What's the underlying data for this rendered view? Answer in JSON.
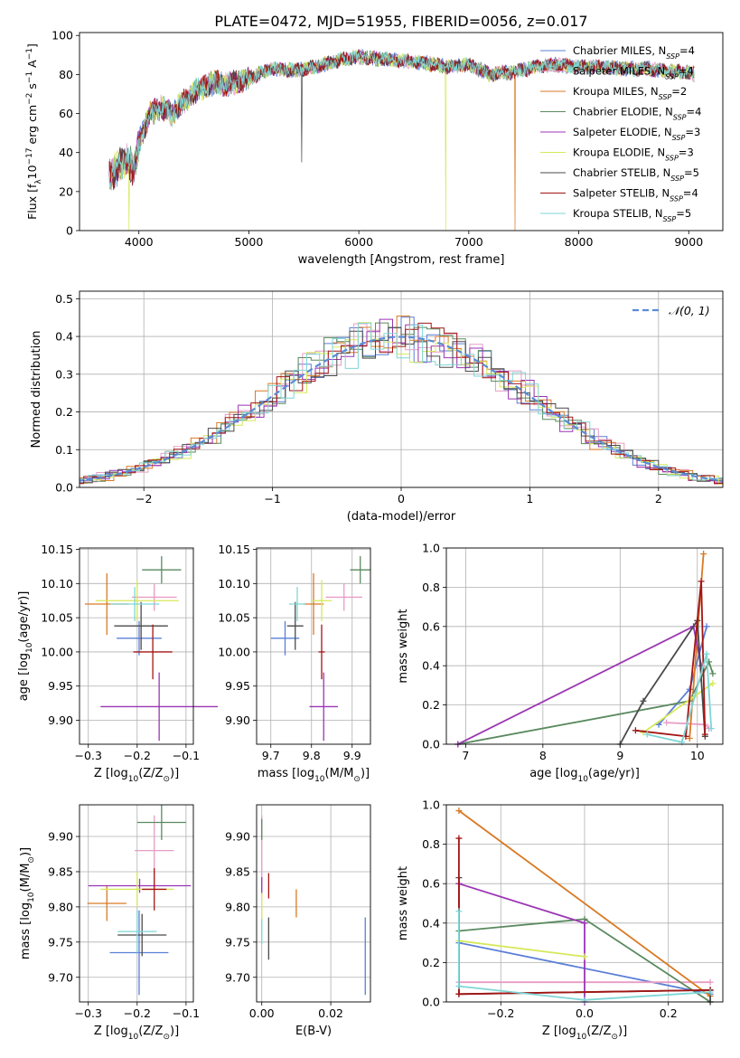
{
  "figure": {
    "title": "PLATE=0472, MJD=51955, FIBERID=0056, z=0.017"
  },
  "chart_data": [
    {
      "id": "spectrum",
      "type": "line",
      "xlabel": "wavelength [Angstrom, rest frame]",
      "ylabel_parts": {
        "pre": "Flux [f",
        "sub": "λ",
        "mid": "10",
        "sup1": "−17",
        "post": " erg cm",
        "sup2": "−2",
        "post2": " s",
        "sup3": "−1",
        "post3": " A",
        "sup4": "−1",
        "end": "]"
      },
      "xlim": [
        3460,
        9310
      ],
      "ylim": [
        0,
        101.5
      ],
      "xticks": [
        4000,
        5000,
        6000,
        7000,
        8000,
        9000
      ],
      "yticks": [
        0,
        20,
        40,
        60,
        80,
        100
      ],
      "legend_position": "upper-right",
      "series": [
        {
          "name": "Chabrier MILES",
          "nssp": "4",
          "color": "#5b7fd6",
          "seed": 3,
          "spikes": []
        },
        {
          "name": "Salpeter MILES",
          "nssp": "4",
          "color": "#e89cc4",
          "seed": 7,
          "spikes": []
        },
        {
          "name": "Kroupa MILES",
          "nssp": "2",
          "color": "#d97a25",
          "seed": 11,
          "spikes": [
            [
              7420,
              0
            ]
          ]
        },
        {
          "name": "Chabrier ELODIE",
          "nssp": "4",
          "color": "#5a8a5f",
          "seed": 13,
          "spikes": []
        },
        {
          "name": "Salpeter ELODIE",
          "nssp": "3",
          "color": "#9b35b5",
          "seed": 17,
          "spikes": []
        },
        {
          "name": "Kroupa ELODIE",
          "nssp": "3",
          "color": "#d6e85a",
          "seed": 19,
          "spikes": [
            [
              3910,
              0
            ],
            [
              6790,
              0
            ]
          ]
        },
        {
          "name": "Chabrier STELIB",
          "nssp": "5",
          "color": "#4a4a4a",
          "seed": 23,
          "spikes": [
            [
              5480,
              35
            ]
          ]
        },
        {
          "name": "Salpeter STELIB",
          "nssp": "4",
          "color": "#a31515",
          "seed": 29,
          "spikes": []
        },
        {
          "name": "Kroupa STELIB",
          "nssp": "5",
          "color": "#7fd6d6",
          "seed": 31,
          "spikes": []
        }
      ],
      "anchors": {
        "x": [
          3730,
          3800,
          3900,
          3950,
          4000,
          4100,
          4200,
          4300,
          4400,
          4500,
          4600,
          4700,
          4800,
          5000,
          5200,
          5400,
          5600,
          5800,
          6000,
          6200,
          6400,
          6600,
          6800,
          7000,
          7200,
          7300,
          7400,
          7600,
          7800,
          8000,
          8200,
          8400,
          8600,
          8800,
          9000,
          9050
        ],
        "y": [
          28,
          32,
          38,
          30,
          45,
          60,
          63,
          60,
          66,
          71,
          74,
          76,
          75,
          78,
          83,
          82,
          84,
          87,
          89,
          88,
          87,
          86,
          84,
          85,
          80,
          81,
          81,
          84,
          85,
          84,
          84,
          83,
          83,
          82,
          81,
          80
        ]
      }
    },
    {
      "id": "residual-histogram",
      "type": "line",
      "xlabel": "(data-model)/error",
      "ylabel": "Normed distribution",
      "xlim": [
        -2.5,
        2.5
      ],
      "ylim": [
        0,
        0.52
      ],
      "xticks": [
        -2,
        -1,
        0,
        1,
        2
      ],
      "yticks": [
        0.0,
        0.1,
        0.2,
        0.3,
        0.4,
        0.5
      ],
      "grid": true,
      "legend_position": "upper-right",
      "reference": {
        "name": "𝒩(0, 1)",
        "color": "#5b8bd6"
      }
    },
    {
      "id": "age-vs-Z",
      "type": "scatter",
      "xlabel_parts": {
        "pre": "Z [log",
        "sub": "10",
        "post": "(Z/Z",
        "sub2": "⊙",
        "end": ")]"
      },
      "ylabel_parts": {
        "pre": "age  [log",
        "sub": "10",
        "post": "(age/yr)]"
      },
      "xlim": [
        -0.318,
        -0.085
      ],
      "ylim": [
        9.865,
        10.152
      ],
      "xticks": [
        -0.3,
        -0.2,
        -0.1
      ],
      "yticks": [
        9.9,
        9.95,
        10.0,
        10.05,
        10.1,
        10.15
      ],
      "grid": true,
      "points": [
        {
          "x": -0.196,
          "xerr": 0.046,
          "y": 10.02,
          "yerr": 0.025,
          "color": "#5b7fd6"
        },
        {
          "x": -0.165,
          "xerr": 0.046,
          "y": 10.08,
          "yerr": 0.02,
          "color": "#e89cc4"
        },
        {
          "x": -0.262,
          "xerr": 0.045,
          "y": 10.07,
          "yerr": 0.045,
          "color": "#d97a25"
        },
        {
          "x": -0.15,
          "xerr": 0.04,
          "y": 10.12,
          "yerr": 0.02,
          "color": "#5a8a5f"
        },
        {
          "x": -0.155,
          "xerr": 0.12,
          "y": 9.92,
          "yerr": 0.05,
          "color": "#9b35b5"
        },
        {
          "x": -0.2,
          "xerr": 0.085,
          "y": 10.075,
          "yerr": 0.03,
          "color": "#d6e85a"
        },
        {
          "x": -0.192,
          "xerr": 0.055,
          "y": 10.038,
          "yerr": 0.035,
          "color": "#4a4a4a"
        },
        {
          "x": -0.168,
          "xerr": 0.04,
          "y": 10.0,
          "yerr": 0.04,
          "color": "#a31515"
        },
        {
          "x": -0.205,
          "xerr": 0.05,
          "y": 10.07,
          "yerr": 0.025,
          "color": "#7fd6d6"
        }
      ]
    },
    {
      "id": "age-vs-mass",
      "type": "scatter",
      "xlabel_parts": {
        "pre": "mass [log",
        "sub": "10",
        "post": "(M/M",
        "sub2": "⊙",
        "end": ")]"
      },
      "xlim": [
        9.665,
        9.945
      ],
      "ylim": [
        9.865,
        10.152
      ],
      "xticks": [
        9.7,
        9.8,
        9.9
      ],
      "yticks": [
        9.9,
        9.95,
        10.0,
        10.05,
        10.1,
        10.15
      ],
      "grid": true,
      "points": [
        {
          "x": 9.735,
          "xerr": 0.035,
          "y": 10.02,
          "yerr": 0.025,
          "color": "#5b7fd6"
        },
        {
          "x": 9.88,
          "xerr": 0.045,
          "y": 10.08,
          "yerr": 0.02,
          "color": "#e89cc4"
        },
        {
          "x": 9.805,
          "xerr": 0.025,
          "y": 10.07,
          "yerr": 0.045,
          "color": "#d97a25"
        },
        {
          "x": 9.92,
          "xerr": 0.025,
          "y": 10.12,
          "yerr": 0.02,
          "color": "#5a8a5f"
        },
        {
          "x": 9.83,
          "xerr": 0.035,
          "y": 9.92,
          "yerr": 0.05,
          "color": "#9b35b5"
        },
        {
          "x": 9.825,
          "xerr": 0.025,
          "y": 10.075,
          "yerr": 0.03,
          "color": "#d6e85a"
        },
        {
          "x": 9.76,
          "xerr": 0.02,
          "y": 10.038,
          "yerr": 0.035,
          "color": "#4a4a4a"
        },
        {
          "x": 9.825,
          "xerr": 0.008,
          "y": 10.0,
          "yerr": 0.04,
          "color": "#a31515"
        },
        {
          "x": 9.765,
          "xerr": 0.02,
          "y": 10.07,
          "yerr": 0.025,
          "color": "#7fd6d6"
        }
      ]
    },
    {
      "id": "mass-weight-vs-age",
      "type": "line",
      "xlabel_parts": {
        "pre": "age  [log",
        "sub": "10",
        "post": "(age/yr)]"
      },
      "ylabel": "mass weight",
      "xlim": [
        6.75,
        10.33
      ],
      "ylim": [
        0,
        1.0
      ],
      "xticks": [
        7,
        8,
        9,
        10
      ],
      "yticks": [
        0.0,
        0.2,
        0.4,
        0.6,
        0.8,
        1.0
      ],
      "grid": true,
      "series": [
        {
          "color": "#5b7fd6",
          "x": [
            9.5,
            9.9,
            10.12
          ],
          "y": [
            0.1,
            0.28,
            0.6
          ]
        },
        {
          "color": "#e89cc4",
          "x": [
            9.6,
            10.1,
            10.15
          ],
          "y": [
            0.11,
            0.1,
            0.08
          ]
        },
        {
          "color": "#d97a25",
          "x": [
            9.9,
            10.08
          ],
          "y": [
            0.03,
            0.97
          ]
        },
        {
          "color": "#5a8a5f",
          "x": [
            6.9,
            9.9,
            10.15,
            10.2
          ],
          "y": [
            0.0,
            0.22,
            0.42,
            0.36
          ]
        },
        {
          "color": "#9b35b5",
          "x": [
            6.9,
            9.95,
            10.05
          ],
          "y": [
            0.0,
            0.6,
            0.4
          ]
        },
        {
          "color": "#d6e85a",
          "x": [
            9.3,
            9.95,
            10.2
          ],
          "y": [
            0.06,
            0.24,
            0.31
          ]
        },
        {
          "color": "#4a4a4a",
          "x": [
            9.0,
            9.3,
            10.0,
            10.1
          ],
          "y": [
            0.0,
            0.22,
            0.63,
            0.04
          ]
        },
        {
          "color": "#a31515",
          "x": [
            9.2,
            9.85,
            10.05,
            10.1
          ],
          "y": [
            0.07,
            0.04,
            0.83,
            0.05
          ]
        },
        {
          "color": "#7fd6d6",
          "x": [
            9.35,
            9.8,
            10.12,
            10.18
          ],
          "y": [
            0.05,
            0.01,
            0.46,
            0.08
          ]
        }
      ]
    },
    {
      "id": "mass-vs-Z",
      "type": "scatter",
      "xlabel_parts": {
        "pre": "Z [log",
        "sub": "10",
        "post": "(Z/Z",
        "sub2": "⊙",
        "end": ")]"
      },
      "ylabel_parts": {
        "pre": "mass [log",
        "sub": "10",
        "post": "(M/M",
        "sub2": "⊙",
        "end": ")]"
      },
      "xlim": [
        -0.318,
        -0.085
      ],
      "ylim": [
        9.665,
        9.945
      ],
      "xticks": [
        -0.3,
        -0.2,
        -0.1
      ],
      "yticks": [
        9.7,
        9.75,
        9.8,
        9.85,
        9.9
      ],
      "grid": true,
      "points": [
        {
          "x": -0.196,
          "xerr": 0.06,
          "y": 9.735,
          "yerr": 0.06,
          "color": "#5b7fd6"
        },
        {
          "x": -0.165,
          "xerr": 0.04,
          "y": 9.88,
          "yerr": 0.05,
          "color": "#e89cc4"
        },
        {
          "x": -0.262,
          "xerr": 0.04,
          "y": 9.805,
          "yerr": 0.025,
          "color": "#d97a25"
        },
        {
          "x": -0.15,
          "xerr": 0.05,
          "y": 9.92,
          "yerr": 0.025,
          "color": "#5a8a5f"
        },
        {
          "x": -0.195,
          "xerr": 0.105,
          "y": 9.83,
          "yerr": 0.01,
          "color": "#9b35b5"
        },
        {
          "x": -0.2,
          "xerr": 0.075,
          "y": 9.825,
          "yerr": 0.025,
          "color": "#d6e85a"
        },
        {
          "x": -0.19,
          "xerr": 0.05,
          "y": 9.76,
          "yerr": 0.03,
          "color": "#4a4a4a"
        },
        {
          "x": -0.165,
          "xerr": 0.025,
          "y": 9.825,
          "yerr": 0.03,
          "color": "#a31515"
        },
        {
          "x": -0.2,
          "xerr": 0.04,
          "y": 9.765,
          "yerr": 0.03,
          "color": "#7fd6d6"
        }
      ]
    },
    {
      "id": "mass-vs-ebv",
      "type": "scatter",
      "xlabel": "E(B-V)",
      "xlim": [
        -0.0015,
        0.0315
      ],
      "ylim": [
        9.665,
        9.945
      ],
      "xticks": [
        0.0,
        0.02
      ],
      "yticks": [
        9.7,
        9.75,
        9.8,
        9.85,
        9.9
      ],
      "grid": true,
      "points": [
        {
          "x": 0.03,
          "y": 9.73,
          "yerr": 0.055,
          "color": "#5b7fd6"
        },
        {
          "x": 0.0,
          "y": 9.88,
          "yerr": 0.05,
          "color": "#e89cc4"
        },
        {
          "x": 0.01,
          "y": 9.805,
          "yerr": 0.02,
          "color": "#d97a25"
        },
        {
          "x": 0.0,
          "y": 9.91,
          "yerr": 0.015,
          "color": "#5a8a5f"
        },
        {
          "x": 0.0,
          "y": 9.83,
          "yerr": 0.012,
          "color": "#9b35b5"
        },
        {
          "x": 0.0,
          "y": 9.8,
          "yerr": 0.02,
          "color": "#d6e85a"
        },
        {
          "x": 0.002,
          "y": 9.755,
          "yerr": 0.03,
          "color": "#4a4a4a"
        },
        {
          "x": 0.002,
          "y": 9.83,
          "yerr": 0.018,
          "color": "#a31515"
        },
        {
          "x": 0.0,
          "y": 9.765,
          "yerr": 0.018,
          "color": "#7fd6d6"
        }
      ]
    },
    {
      "id": "mass-weight-vs-Z",
      "type": "line",
      "xlabel_parts": {
        "pre": "Z [log",
        "sub": "10",
        "post": "(Z/Z",
        "sub2": "⊙",
        "end": ")]"
      },
      "ylabel": "mass weight",
      "xlim": [
        -0.33,
        0.33
      ],
      "ylim": [
        0,
        1.0
      ],
      "xticks": [
        -0.2,
        0.0,
        0.2
      ],
      "yticks": [
        0.0,
        0.2,
        0.4,
        0.6,
        0.8,
        1.0
      ],
      "grid": true,
      "series": [
        {
          "color": "#5b7fd6",
          "x": [
            -0.3,
            -0.3,
            0.3,
            0.3
          ],
          "y": [
            0.6,
            0.3,
            0.04,
            0.06
          ]
        },
        {
          "color": "#e89cc4",
          "x": [
            -0.3,
            0.3
          ],
          "y": [
            0.1,
            0.1
          ]
        },
        {
          "color": "#d97a25",
          "x": [
            -0.3,
            0.3
          ],
          "y": [
            0.97,
            0.03
          ]
        },
        {
          "color": "#5a8a5f",
          "x": [
            -0.3,
            0.0,
            0.3
          ],
          "y": [
            0.36,
            0.42,
            0.0
          ]
        },
        {
          "color": "#9b35b5",
          "x": [
            -0.3,
            0.0,
            0.0
          ],
          "y": [
            0.6,
            0.4,
            0.0
          ]
        },
        {
          "color": "#d6e85a",
          "x": [
            -0.3,
            0.0
          ],
          "y": [
            0.31,
            0.23
          ]
        },
        {
          "color": "#4a4a4a",
          "x": [
            -0.3,
            -0.3,
            0.3,
            0.3
          ],
          "y": [
            0.63,
            0.04,
            0.06,
            0.0
          ]
        },
        {
          "color": "#a31515",
          "x": [
            -0.3,
            -0.3,
            0.3
          ],
          "y": [
            0.83,
            0.04,
            0.06
          ]
        },
        {
          "color": "#7fd6d6",
          "x": [
            -0.3,
            -0.3,
            0.0,
            0.3
          ],
          "y": [
            0.46,
            0.08,
            0.01,
            0.05
          ]
        }
      ]
    }
  ]
}
